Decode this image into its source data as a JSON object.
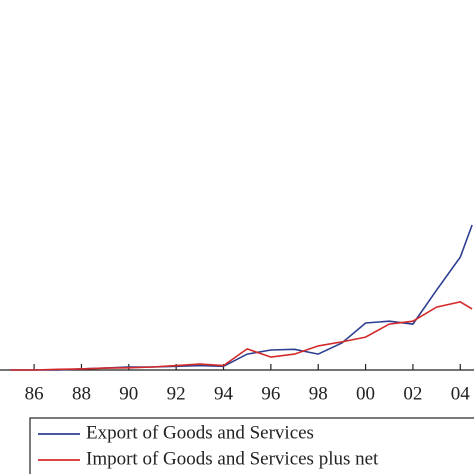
{
  "chart_data": {
    "type": "line",
    "x": [
      1985,
      1986,
      1987,
      1988,
      1989,
      1990,
      1991,
      1992,
      1993,
      1994,
      1995,
      1996,
      1997,
      1998,
      1999,
      2000,
      2001,
      2002,
      2003,
      2004,
      2004.5
    ],
    "series": [
      {
        "name": "Export of Goods and Services",
        "color": "#2e3f91",
        "values": [
          0,
          0,
          0,
          0.3,
          0.5,
          0.8,
          0.8,
          1,
          1.2,
          1,
          4.3,
          5.4,
          5.6,
          4.3,
          7.3,
          12.7,
          13.2,
          12.4,
          21.6,
          30.5,
          39.2
        ]
      },
      {
        "name": "Import of Goods and Services plus net",
        "color": "#d42a2a",
        "values": [
          0,
          0,
          0.2,
          0.3,
          0.5,
          0.6,
          0.8,
          1.2,
          1.6,
          1.2,
          5.7,
          3.5,
          4.3,
          6.5,
          7.6,
          8.9,
          12.4,
          13.2,
          17,
          18.4,
          16.5
        ]
      }
    ],
    "xlim": [
      1984.56,
      2004.58
    ],
    "xticks": [
      {
        "value": 1986,
        "label": "86"
      },
      {
        "value": 1988,
        "label": "88"
      },
      {
        "value": 1990,
        "label": "90"
      },
      {
        "value": 1992,
        "label": "92"
      },
      {
        "value": 1994,
        "label": "94"
      },
      {
        "value": 1996,
        "label": "96"
      },
      {
        "value": 1998,
        "label": "98"
      },
      {
        "value": 2000,
        "label": "00"
      },
      {
        "value": 2002,
        "label": "02"
      },
      {
        "value": 2004,
        "label": "04"
      }
    ],
    "ylim": [
      0,
      100
    ]
  }
}
